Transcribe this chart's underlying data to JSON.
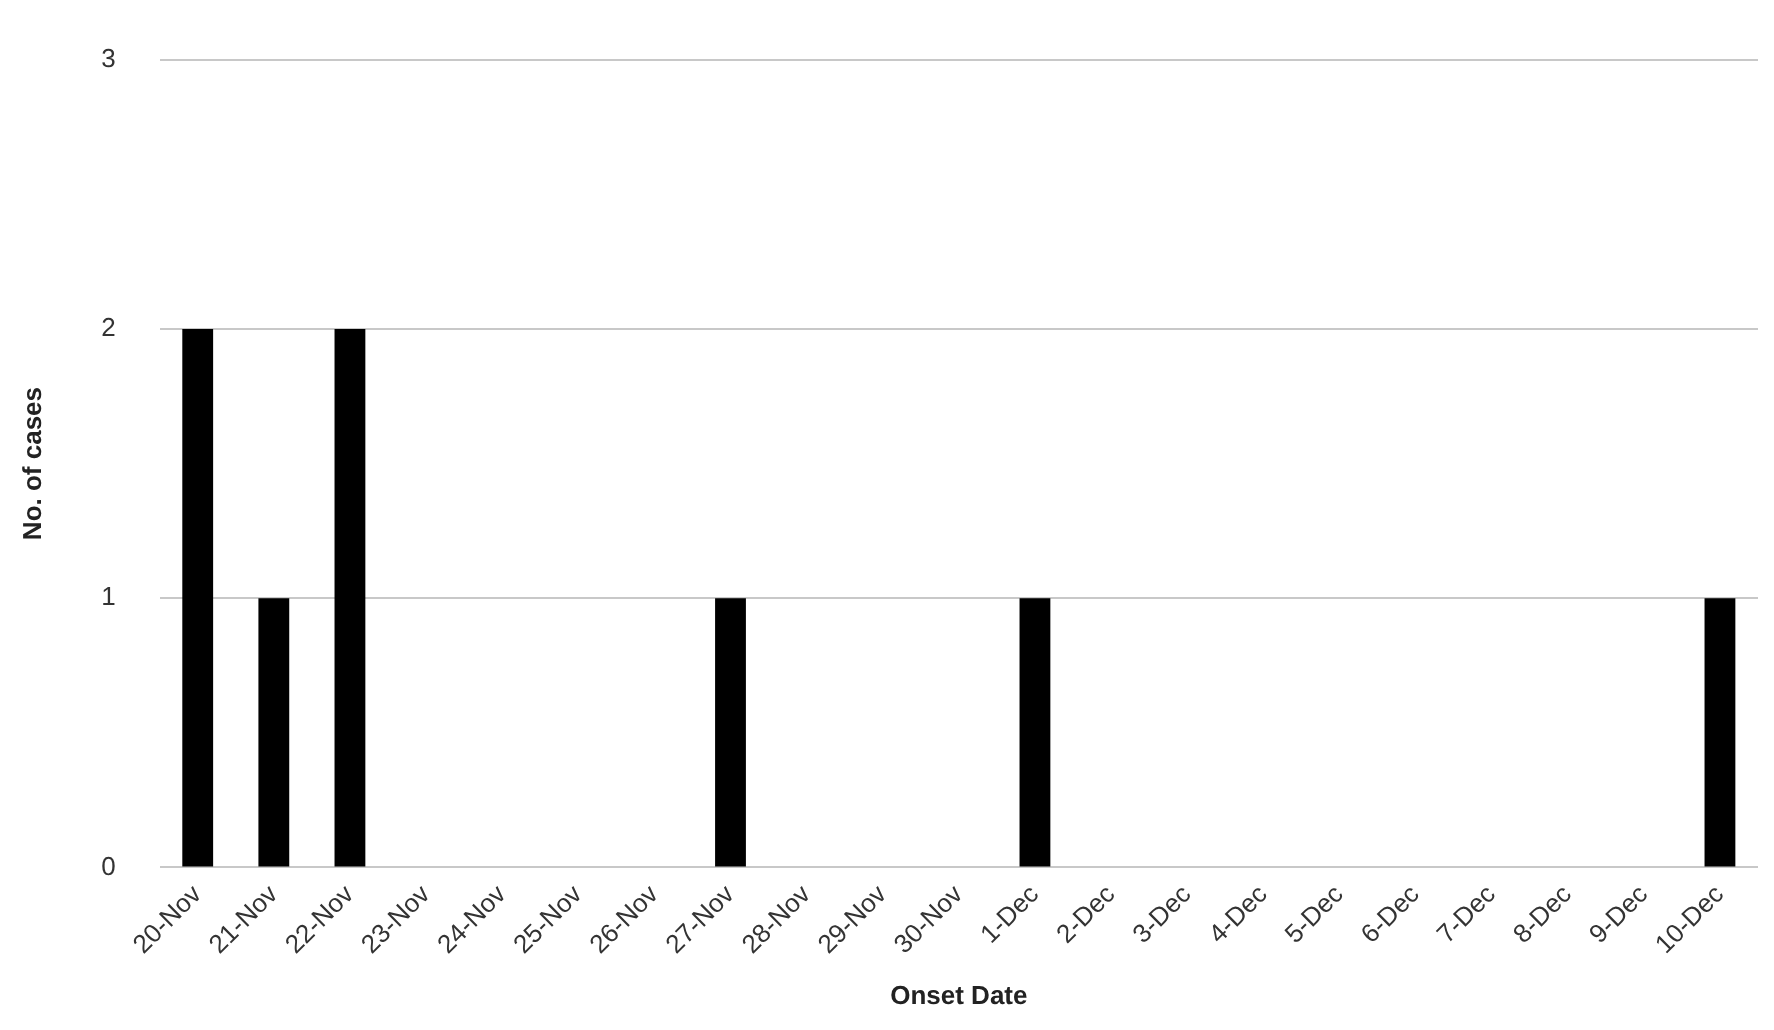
{
  "chart_data": {
    "type": "bar",
    "xlabel": "Onset Date",
    "ylabel": "No. of cases",
    "categories": [
      "20-Nov",
      "21-Nov",
      "22-Nov",
      "23-Nov",
      "24-Nov",
      "25-Nov",
      "26-Nov",
      "27-Nov",
      "28-Nov",
      "29-Nov",
      "30-Nov",
      "1-Dec",
      "2-Dec",
      "3-Dec",
      "4-Dec",
      "5-Dec",
      "6-Dec",
      "7-Dec",
      "8-Dec",
      "9-Dec",
      "10-Dec"
    ],
    "values": [
      2,
      1,
      2,
      0,
      0,
      0,
      0,
      1,
      0,
      0,
      0,
      1,
      0,
      0,
      0,
      0,
      0,
      0,
      0,
      0,
      1
    ],
    "color": "#000000",
    "ylim": [
      0,
      3
    ],
    "yticks": [
      0,
      1,
      2,
      3
    ],
    "grid": "y",
    "legend": false
  }
}
